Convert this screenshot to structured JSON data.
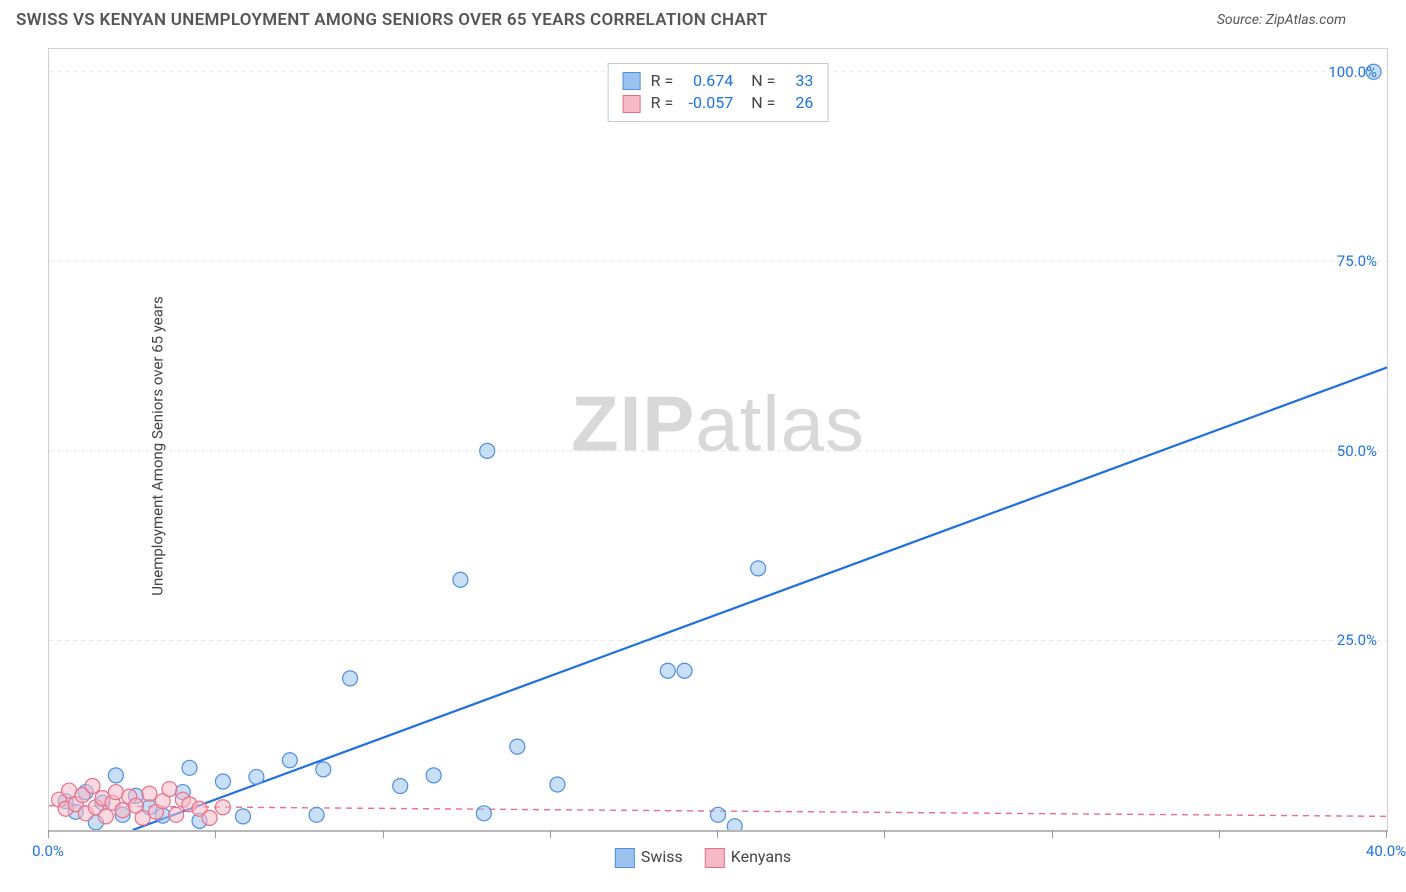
{
  "header": {
    "title": "SWISS VS KENYAN UNEMPLOYMENT AMONG SENIORS OVER 65 YEARS CORRELATION CHART",
    "source_prefix": "Source: ",
    "source_name": "ZipAtlas.com"
  },
  "watermark": {
    "zip": "ZIP",
    "atlas": "atlas"
  },
  "chart": {
    "type": "scatter",
    "ylabel": "Unemployment Among Seniors over 65 years",
    "xlim": [
      0,
      40
    ],
    "ylim": [
      0,
      103
    ],
    "x_ticks": [
      0,
      5,
      10,
      15,
      20,
      25,
      30,
      35,
      40
    ],
    "x_tick_labels": {
      "0": "0.0%",
      "40": "40.0%"
    },
    "y_ticks": [
      25,
      50,
      75,
      100
    ],
    "y_tick_labels": {
      "25": "25.0%",
      "50": "50.0%",
      "75": "75.0%",
      "100": "100.0%"
    },
    "grid_color": "#e4e4e4",
    "grid_dash": "4,4",
    "background_color": "#ffffff",
    "marker_radius": 7.5,
    "marker_opacity": 0.55,
    "series": [
      {
        "key": "swiss",
        "label": "Swiss",
        "R": "0.674",
        "N": "33",
        "fill": "#9cc3f0",
        "stroke": "#4f8fde",
        "line_color": "#1f6fe0",
        "line_width": 2.2,
        "line_dash": "none",
        "trend": {
          "x1": 2.5,
          "y1": 0,
          "x2": 40,
          "y2": 61
        },
        "points": [
          [
            39.6,
            100.0
          ],
          [
            21.2,
            34.5
          ],
          [
            13.1,
            50.0
          ],
          [
            12.3,
            33.0
          ],
          [
            18.5,
            21.0
          ],
          [
            19.0,
            21.0
          ],
          [
            9.0,
            20.0
          ],
          [
            14.0,
            11.0
          ],
          [
            11.5,
            7.2
          ],
          [
            10.5,
            5.8
          ],
          [
            13.0,
            2.2
          ],
          [
            15.2,
            6.0
          ],
          [
            20.0,
            2.0
          ],
          [
            20.5,
            0.5
          ],
          [
            8.2,
            8.0
          ],
          [
            8.0,
            2.0
          ],
          [
            7.2,
            9.2
          ],
          [
            6.2,
            7.0
          ],
          [
            5.8,
            1.8
          ],
          [
            5.2,
            6.4
          ],
          [
            4.5,
            1.2
          ],
          [
            4.0,
            5.0
          ],
          [
            4.2,
            8.2
          ],
          [
            3.4,
            1.9
          ],
          [
            3.0,
            3.0
          ],
          [
            2.6,
            4.5
          ],
          [
            2.2,
            2.0
          ],
          [
            2.0,
            7.2
          ],
          [
            1.6,
            3.6
          ],
          [
            1.4,
            1.0
          ],
          [
            1.1,
            5.0
          ],
          [
            0.8,
            2.4
          ],
          [
            0.5,
            3.8
          ]
        ]
      },
      {
        "key": "kenyans",
        "label": "Kenyans",
        "R": "-0.057",
        "N": "26",
        "fill": "#f6b9c6",
        "stroke": "#e86f8a",
        "line_color": "#e86f8a",
        "line_width": 1.4,
        "line_dash": "6,5",
        "trend": {
          "x1": 0,
          "y1": 3.2,
          "x2": 40,
          "y2": 1.8
        },
        "points": [
          [
            0.3,
            4.0
          ],
          [
            0.5,
            2.8
          ],
          [
            0.6,
            5.2
          ],
          [
            0.8,
            3.4
          ],
          [
            1.0,
            4.6
          ],
          [
            1.1,
            2.2
          ],
          [
            1.3,
            5.8
          ],
          [
            1.4,
            3.0
          ],
          [
            1.6,
            4.2
          ],
          [
            1.7,
            1.8
          ],
          [
            1.9,
            3.6
          ],
          [
            2.0,
            5.0
          ],
          [
            2.2,
            2.6
          ],
          [
            2.4,
            4.4
          ],
          [
            2.6,
            3.2
          ],
          [
            2.8,
            1.6
          ],
          [
            3.0,
            4.8
          ],
          [
            3.2,
            2.4
          ],
          [
            3.4,
            3.8
          ],
          [
            3.6,
            5.4
          ],
          [
            3.8,
            2.0
          ],
          [
            4.0,
            4.0
          ],
          [
            4.2,
            3.4
          ],
          [
            4.5,
            2.8
          ],
          [
            4.8,
            1.6
          ],
          [
            5.2,
            3.0
          ]
        ]
      }
    ]
  },
  "info_labels": {
    "R": "R =",
    "N": "N ="
  }
}
